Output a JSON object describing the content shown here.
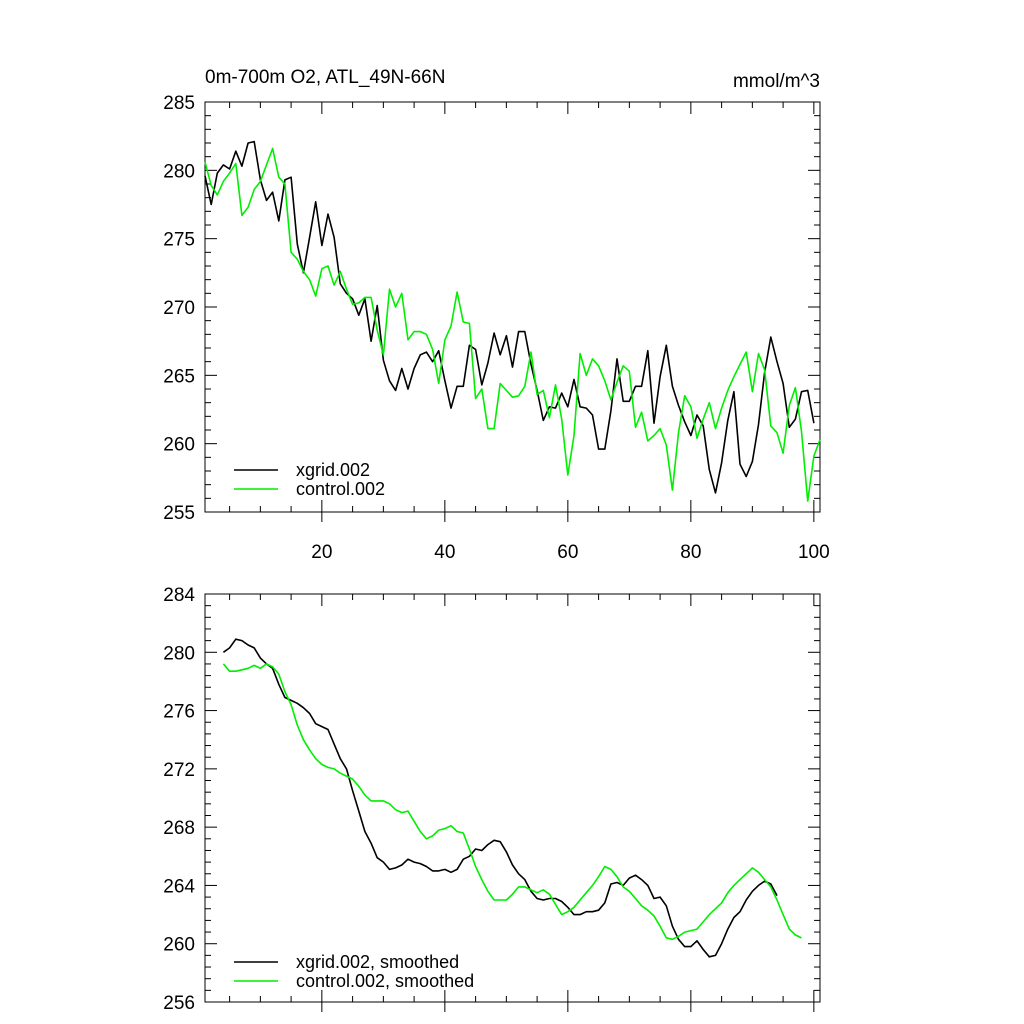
{
  "chart_data": [
    {
      "type": "line",
      "title_left": "0m-700m O2, ATL_49N-66N",
      "title_right": "mmol/m^3",
      "xlim": [
        1,
        101
      ],
      "ylim": [
        255,
        285
      ],
      "x_ticks": [
        20,
        40,
        60,
        80,
        100
      ],
      "y_ticks": [
        255,
        260,
        265,
        270,
        275,
        280,
        285
      ],
      "show_x_tick_labels": true,
      "legend": "bottom-left",
      "series": [
        {
          "name": "xgrid.002",
          "color": "#000000",
          "values": [
            279.6,
            277.5,
            279.8,
            280.4,
            280.1,
            281.4,
            280.3,
            282.0,
            282.1,
            279.3,
            277.8,
            278.4,
            276.3,
            279.3,
            279.5,
            274.6,
            272.5,
            275.1,
            277.7,
            274.5,
            276.8,
            275.1,
            271.7,
            271.0,
            270.6,
            269.4,
            270.6,
            267.5,
            270.1,
            266.1,
            264.6,
            263.9,
            265.5,
            264.0,
            265.5,
            266.5,
            266.7,
            266.0,
            266.8,
            264.6,
            262.6,
            264.2,
            264.2,
            267.2,
            266.9,
            264.3,
            265.9,
            268.1,
            266.5,
            267.9,
            265.6,
            268.2,
            268.2,
            265.8,
            263.9,
            261.7,
            262.7,
            262.6,
            263.7,
            262.7,
            264.7,
            262.7,
            262.6,
            262.1,
            259.6,
            259.6,
            262.4,
            266.2,
            263.1,
            263.1,
            264.2,
            264.2,
            266.8,
            261.5,
            264.9,
            267.2,
            264.2,
            262.8,
            261.6,
            260.6,
            262.1,
            261.3,
            258.1,
            256.4,
            258.6,
            261.7,
            263.8,
            258.5,
            257.6,
            258.7,
            261.4,
            265.2,
            267.8,
            266.0,
            264.4,
            261.2,
            261.8,
            263.8,
            263.9,
            261.5
          ]
        },
        {
          "name": "control.002",
          "color": "#00ee00",
          "values": [
            280.6,
            278.9,
            278.2,
            279.2,
            279.8,
            280.5,
            276.7,
            277.3,
            278.6,
            279.2,
            280.4,
            281.6,
            279.5,
            279.0,
            274.0,
            273.5,
            272.6,
            272.0,
            270.8,
            272.8,
            273.0,
            271.6,
            272.6,
            271.3,
            270.2,
            270.3,
            270.7,
            270.7,
            268.3,
            266.5,
            271.3,
            270.0,
            271.0,
            267.6,
            268.2,
            268.2,
            268.0,
            266.9,
            264.4,
            267.6,
            268.6,
            271.1,
            268.9,
            268.8,
            263.3,
            264.0,
            261.1,
            261.1,
            264.4,
            263.9,
            263.4,
            263.5,
            264.2,
            266.7,
            263.6,
            263.9,
            261.9,
            264.3,
            261.8,
            257.7,
            260.6,
            266.6,
            265.0,
            266.2,
            265.7,
            264.6,
            263.2,
            264.5,
            265.7,
            265.3,
            261.2,
            262.3,
            260.2,
            260.6,
            261.1,
            259.9,
            256.6,
            260.8,
            263.5,
            262.7,
            260.4,
            261.8,
            263.0,
            261.1,
            262.6,
            263.9,
            264.9,
            265.8,
            266.7,
            263.8,
            266.6,
            265.4,
            261.3,
            260.8,
            259.3,
            262.8,
            264.1,
            260.9,
            255.8,
            259.1,
            260.3
          ]
        }
      ]
    },
    {
      "type": "line",
      "xlim": [
        1,
        101
      ],
      "ylim": [
        256,
        284
      ],
      "x_ticks": [
        20,
        40,
        60,
        80,
        100
      ],
      "y_ticks": [
        256,
        260,
        264,
        268,
        272,
        276,
        280,
        284
      ],
      "show_x_tick_labels": false,
      "legend": "bottom-left",
      "series": [
        {
          "name": "xgrid.002, smoothed",
          "color": "#000000",
          "x_start": 4,
          "values": [
            280.0,
            280.3,
            280.9,
            280.8,
            280.5,
            280.3,
            279.6,
            279.2,
            278.9,
            277.8,
            276.9,
            276.7,
            276.5,
            276.2,
            275.8,
            275.1,
            274.9,
            274.7,
            273.7,
            272.7,
            272.0,
            270.5,
            269.1,
            267.7,
            266.9,
            265.9,
            265.6,
            265.1,
            265.2,
            265.4,
            265.8,
            265.6,
            265.5,
            265.3,
            265.0,
            265.0,
            265.1,
            264.9,
            265.1,
            265.8,
            266.0,
            266.5,
            266.4,
            266.8,
            267.1,
            267.0,
            266.3,
            265.4,
            264.8,
            264.4,
            263.6,
            263.1,
            263.0,
            263.1,
            263.1,
            262.9,
            262.5,
            262.0,
            262.0,
            262.2,
            262.2,
            262.3,
            262.8,
            264.1,
            264.2,
            264.0,
            264.5,
            264.7,
            264.4,
            264.0,
            263.1,
            263.2,
            262.6,
            261.2,
            260.3,
            259.8,
            259.8,
            260.2,
            259.6,
            259.1,
            259.2,
            260.0,
            261.0,
            261.8,
            262.2,
            263.0,
            263.6,
            264.0,
            264.3,
            264.1,
            263.3
          ]
        },
        {
          "name": "control.002, smoothed",
          "color": "#00ee00",
          "x_start": 4,
          "values": [
            279.2,
            278.7,
            278.7,
            278.8,
            278.9,
            279.1,
            278.9,
            279.2,
            279.0,
            278.5,
            277.3,
            276.4,
            275.0,
            274.0,
            273.3,
            272.7,
            272.3,
            272.1,
            272.0,
            271.7,
            271.5,
            271.3,
            270.8,
            270.2,
            269.8,
            269.8,
            269.8,
            269.6,
            269.2,
            269.0,
            269.1,
            268.4,
            267.7,
            267.2,
            267.4,
            267.8,
            267.9,
            268.1,
            267.7,
            267.6,
            266.5,
            265.3,
            264.4,
            263.6,
            263.0,
            263.0,
            263.0,
            263.4,
            263.9,
            263.9,
            263.7,
            263.5,
            263.7,
            263.4,
            262.7,
            262.0,
            262.2,
            262.5,
            263.0,
            263.5,
            264.0,
            264.6,
            265.3,
            265.1,
            264.6,
            263.9,
            263.6,
            263.1,
            262.6,
            262.3,
            261.9,
            261.2,
            260.4,
            260.3,
            260.5,
            260.8,
            260.9,
            261.0,
            261.5,
            262.0,
            262.4,
            262.8,
            263.5,
            264.0,
            264.4,
            264.8,
            265.2,
            264.9,
            264.4,
            263.9,
            263.0,
            262.0,
            261.0,
            260.6,
            260.4
          ]
        }
      ]
    }
  ]
}
